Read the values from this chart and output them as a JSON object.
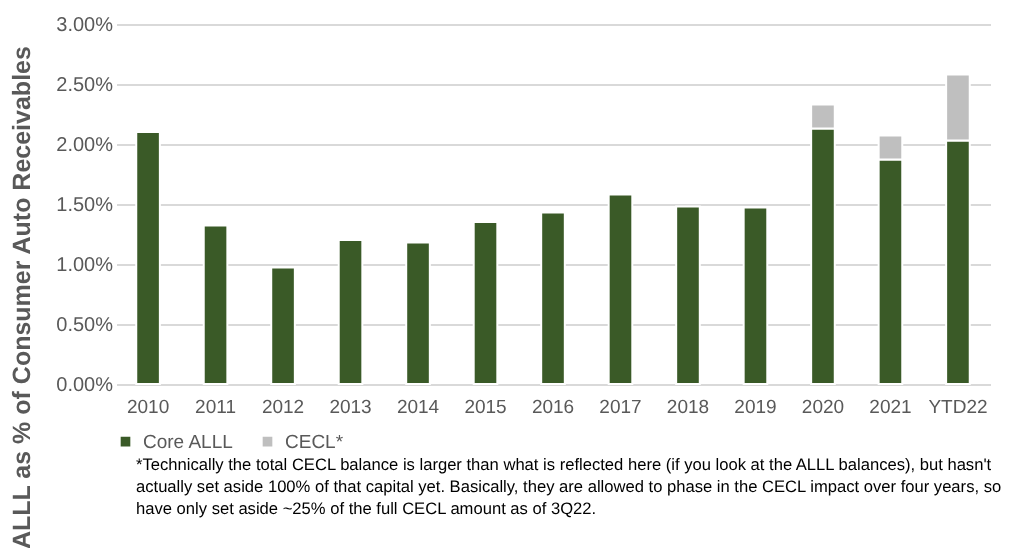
{
  "chart_data": {
    "type": "bar",
    "stacked": true,
    "ylabel": "ALLL as % of Consumer Auto Receivables",
    "categories": [
      "2010",
      "2011",
      "2012",
      "2013",
      "2014",
      "2015",
      "2016",
      "2017",
      "2018",
      "2019",
      "2020",
      "2021",
      "YTD22"
    ],
    "series": [
      {
        "name": "Core ALLL",
        "color": "#3a5a27",
        "values": [
          2.1,
          1.32,
          0.97,
          1.2,
          1.18,
          1.35,
          1.43,
          1.58,
          1.48,
          1.47,
          2.13,
          1.87,
          2.03
        ]
      },
      {
        "name": "CECL*",
        "color": "#bfbfbf",
        "values": [
          null,
          null,
          null,
          null,
          null,
          null,
          null,
          null,
          null,
          null,
          0.2,
          0.2,
          0.55
        ]
      }
    ],
    "ylim": [
      0,
      3
    ],
    "yticks": [
      {
        "value": 0,
        "label": "0.00%"
      },
      {
        "value": 0.5,
        "label": "0.50%"
      },
      {
        "value": 1,
        "label": "1.00%"
      },
      {
        "value": 1.5,
        "label": "1.50%"
      },
      {
        "value": 2,
        "label": "2.00%"
      },
      {
        "value": 2.5,
        "label": "2.50%"
      },
      {
        "value": 3,
        "label": "3.00%"
      }
    ],
    "grid": "y",
    "legend": "bottom",
    "annotations": [
      "*Technically the total CECL balance is larger than what is reflected here (if you look at the ALLL balances), but hasn't actually set aside 100% of that capital yet. Basically, they are allowed to phase in the CECL impact over four years, so have only set aside ~25% of the full CECL amount as of 3Q22."
    ]
  }
}
